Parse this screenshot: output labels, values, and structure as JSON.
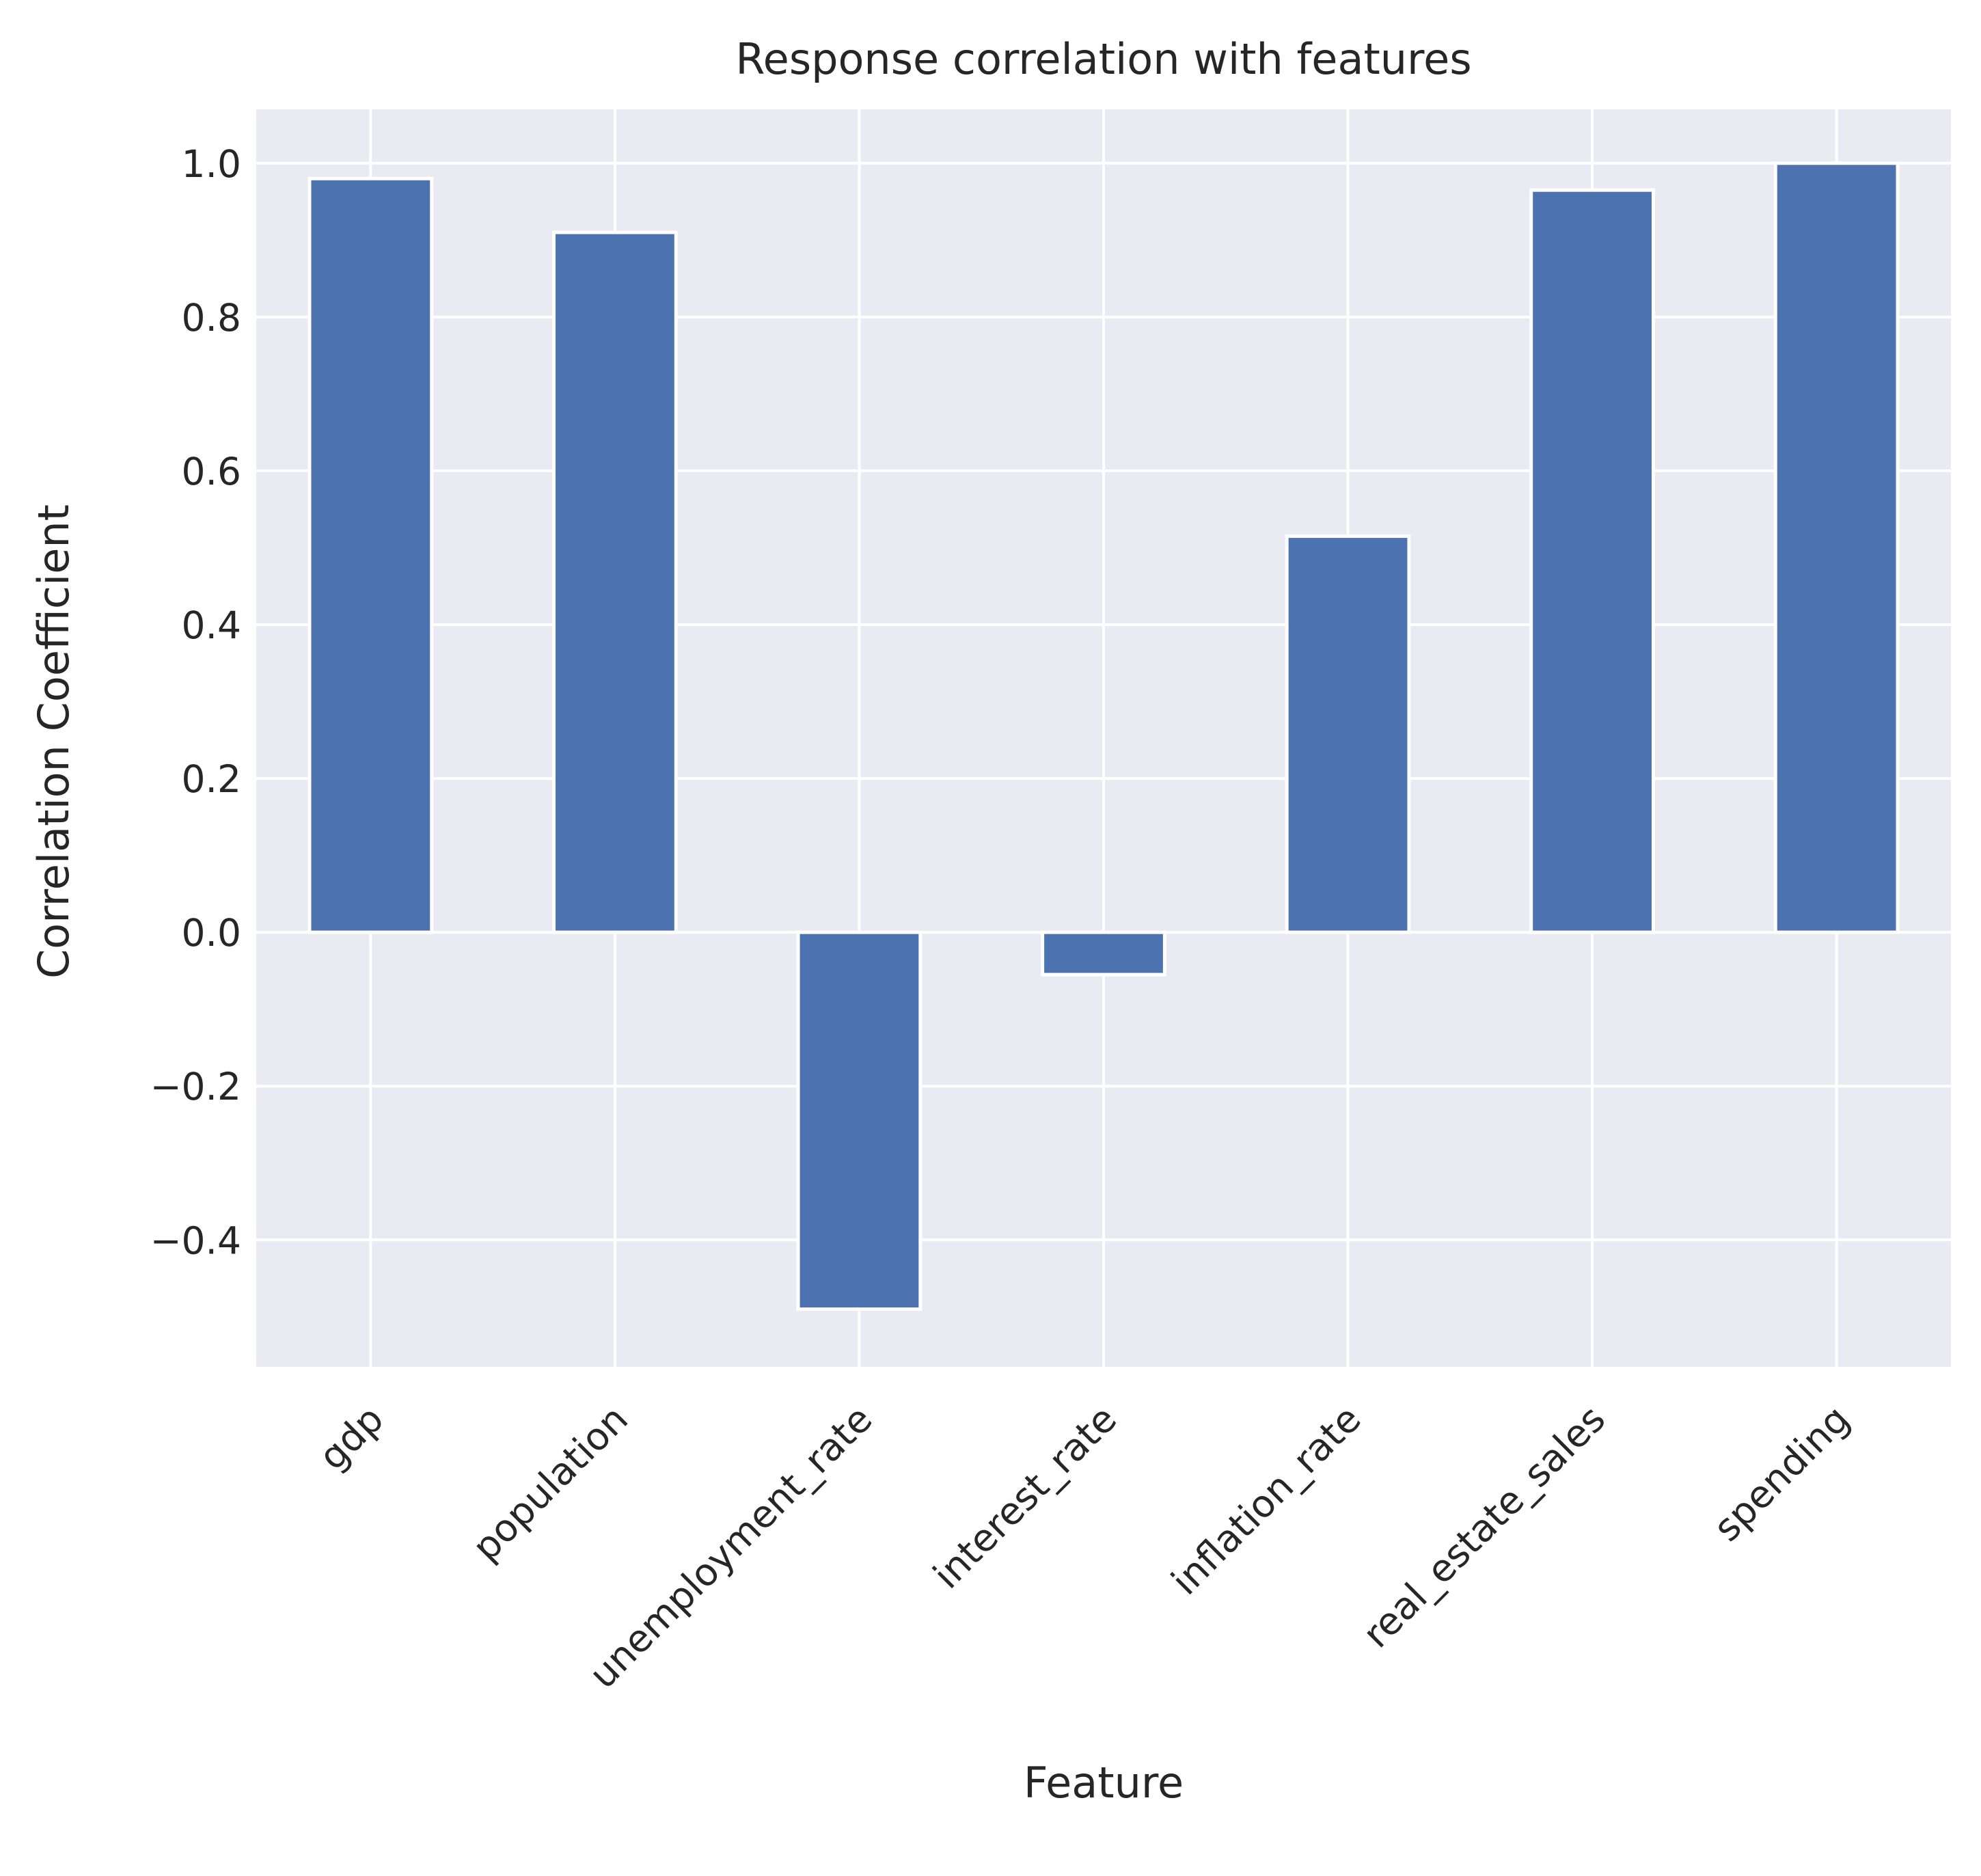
{
  "chart_data": {
    "type": "bar",
    "title": "Response correlation with features",
    "xlabel": "Feature",
    "ylabel": "Correlation Coefficient",
    "categories": [
      "gdp",
      "population",
      "unemployment_rate",
      "interest_rate",
      "inflation_rate",
      "real_estate_sales",
      "spending"
    ],
    "values": [
      0.98,
      0.91,
      -0.49,
      -0.055,
      0.515,
      0.965,
      1.0
    ],
    "ylim": [
      -0.565,
      1.07
    ],
    "yticks": [
      -0.4,
      -0.2,
      0.0,
      0.2,
      0.4,
      0.6,
      0.8,
      1.0
    ],
    "ytick_labels": [
      "−0.4",
      "−0.2",
      "0.0",
      "0.2",
      "0.4",
      "0.6",
      "0.8",
      "1.0"
    ],
    "grid": true,
    "colors": {
      "bar": "#4c72b0",
      "background": "#eaeaf2",
      "grid": "#ffffff"
    }
  }
}
